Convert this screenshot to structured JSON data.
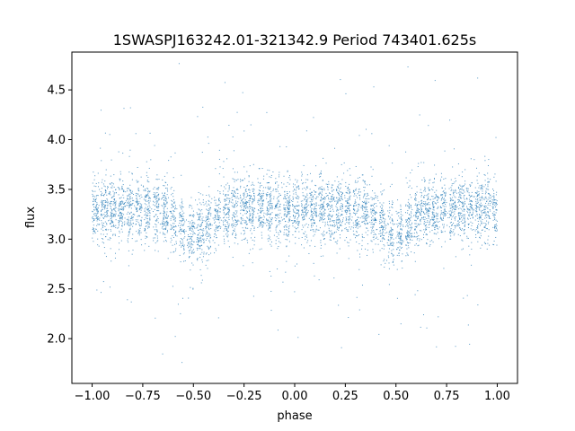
{
  "chart_data": {
    "type": "scatter",
    "title": "1SWASPJ163242.01-321342.9 Period 743401.625s",
    "xlabel": "phase",
    "ylabel": "flux",
    "xlim": [
      -1.1,
      1.1
    ],
    "ylim": [
      1.55,
      4.88
    ],
    "x_ticks": [
      {
        "value": -1.0,
        "label": "−1.00"
      },
      {
        "value": -0.75,
        "label": "−0.75"
      },
      {
        "value": -0.5,
        "label": "−0.50"
      },
      {
        "value": -0.25,
        "label": "−0.25"
      },
      {
        "value": 0.0,
        "label": "0.00"
      },
      {
        "value": 0.25,
        "label": "0.25"
      },
      {
        "value": 0.5,
        "label": "0.50"
      },
      {
        "value": 0.75,
        "label": "0.75"
      },
      {
        "value": 1.0,
        "label": "1.00"
      }
    ],
    "y_ticks": [
      {
        "value": 2.0,
        "label": "2.0"
      },
      {
        "value": 2.5,
        "label": "2.5"
      },
      {
        "value": 3.0,
        "label": "3.0"
      },
      {
        "value": 3.5,
        "label": "3.5"
      },
      {
        "value": 4.0,
        "label": "4.0"
      },
      {
        "value": 4.5,
        "label": "4.5"
      }
    ],
    "grid": false,
    "legend": "none",
    "marker_color": "#1f77b4",
    "phase_range": [
      -1.0,
      1.0
    ],
    "baseline_flux": 3.3,
    "eclipse_dip_phase": [
      -0.5,
      0.5
    ],
    "eclipse_dip_flux": 3.05,
    "flux_extremes": [
      1.72,
      4.78
    ]
  }
}
